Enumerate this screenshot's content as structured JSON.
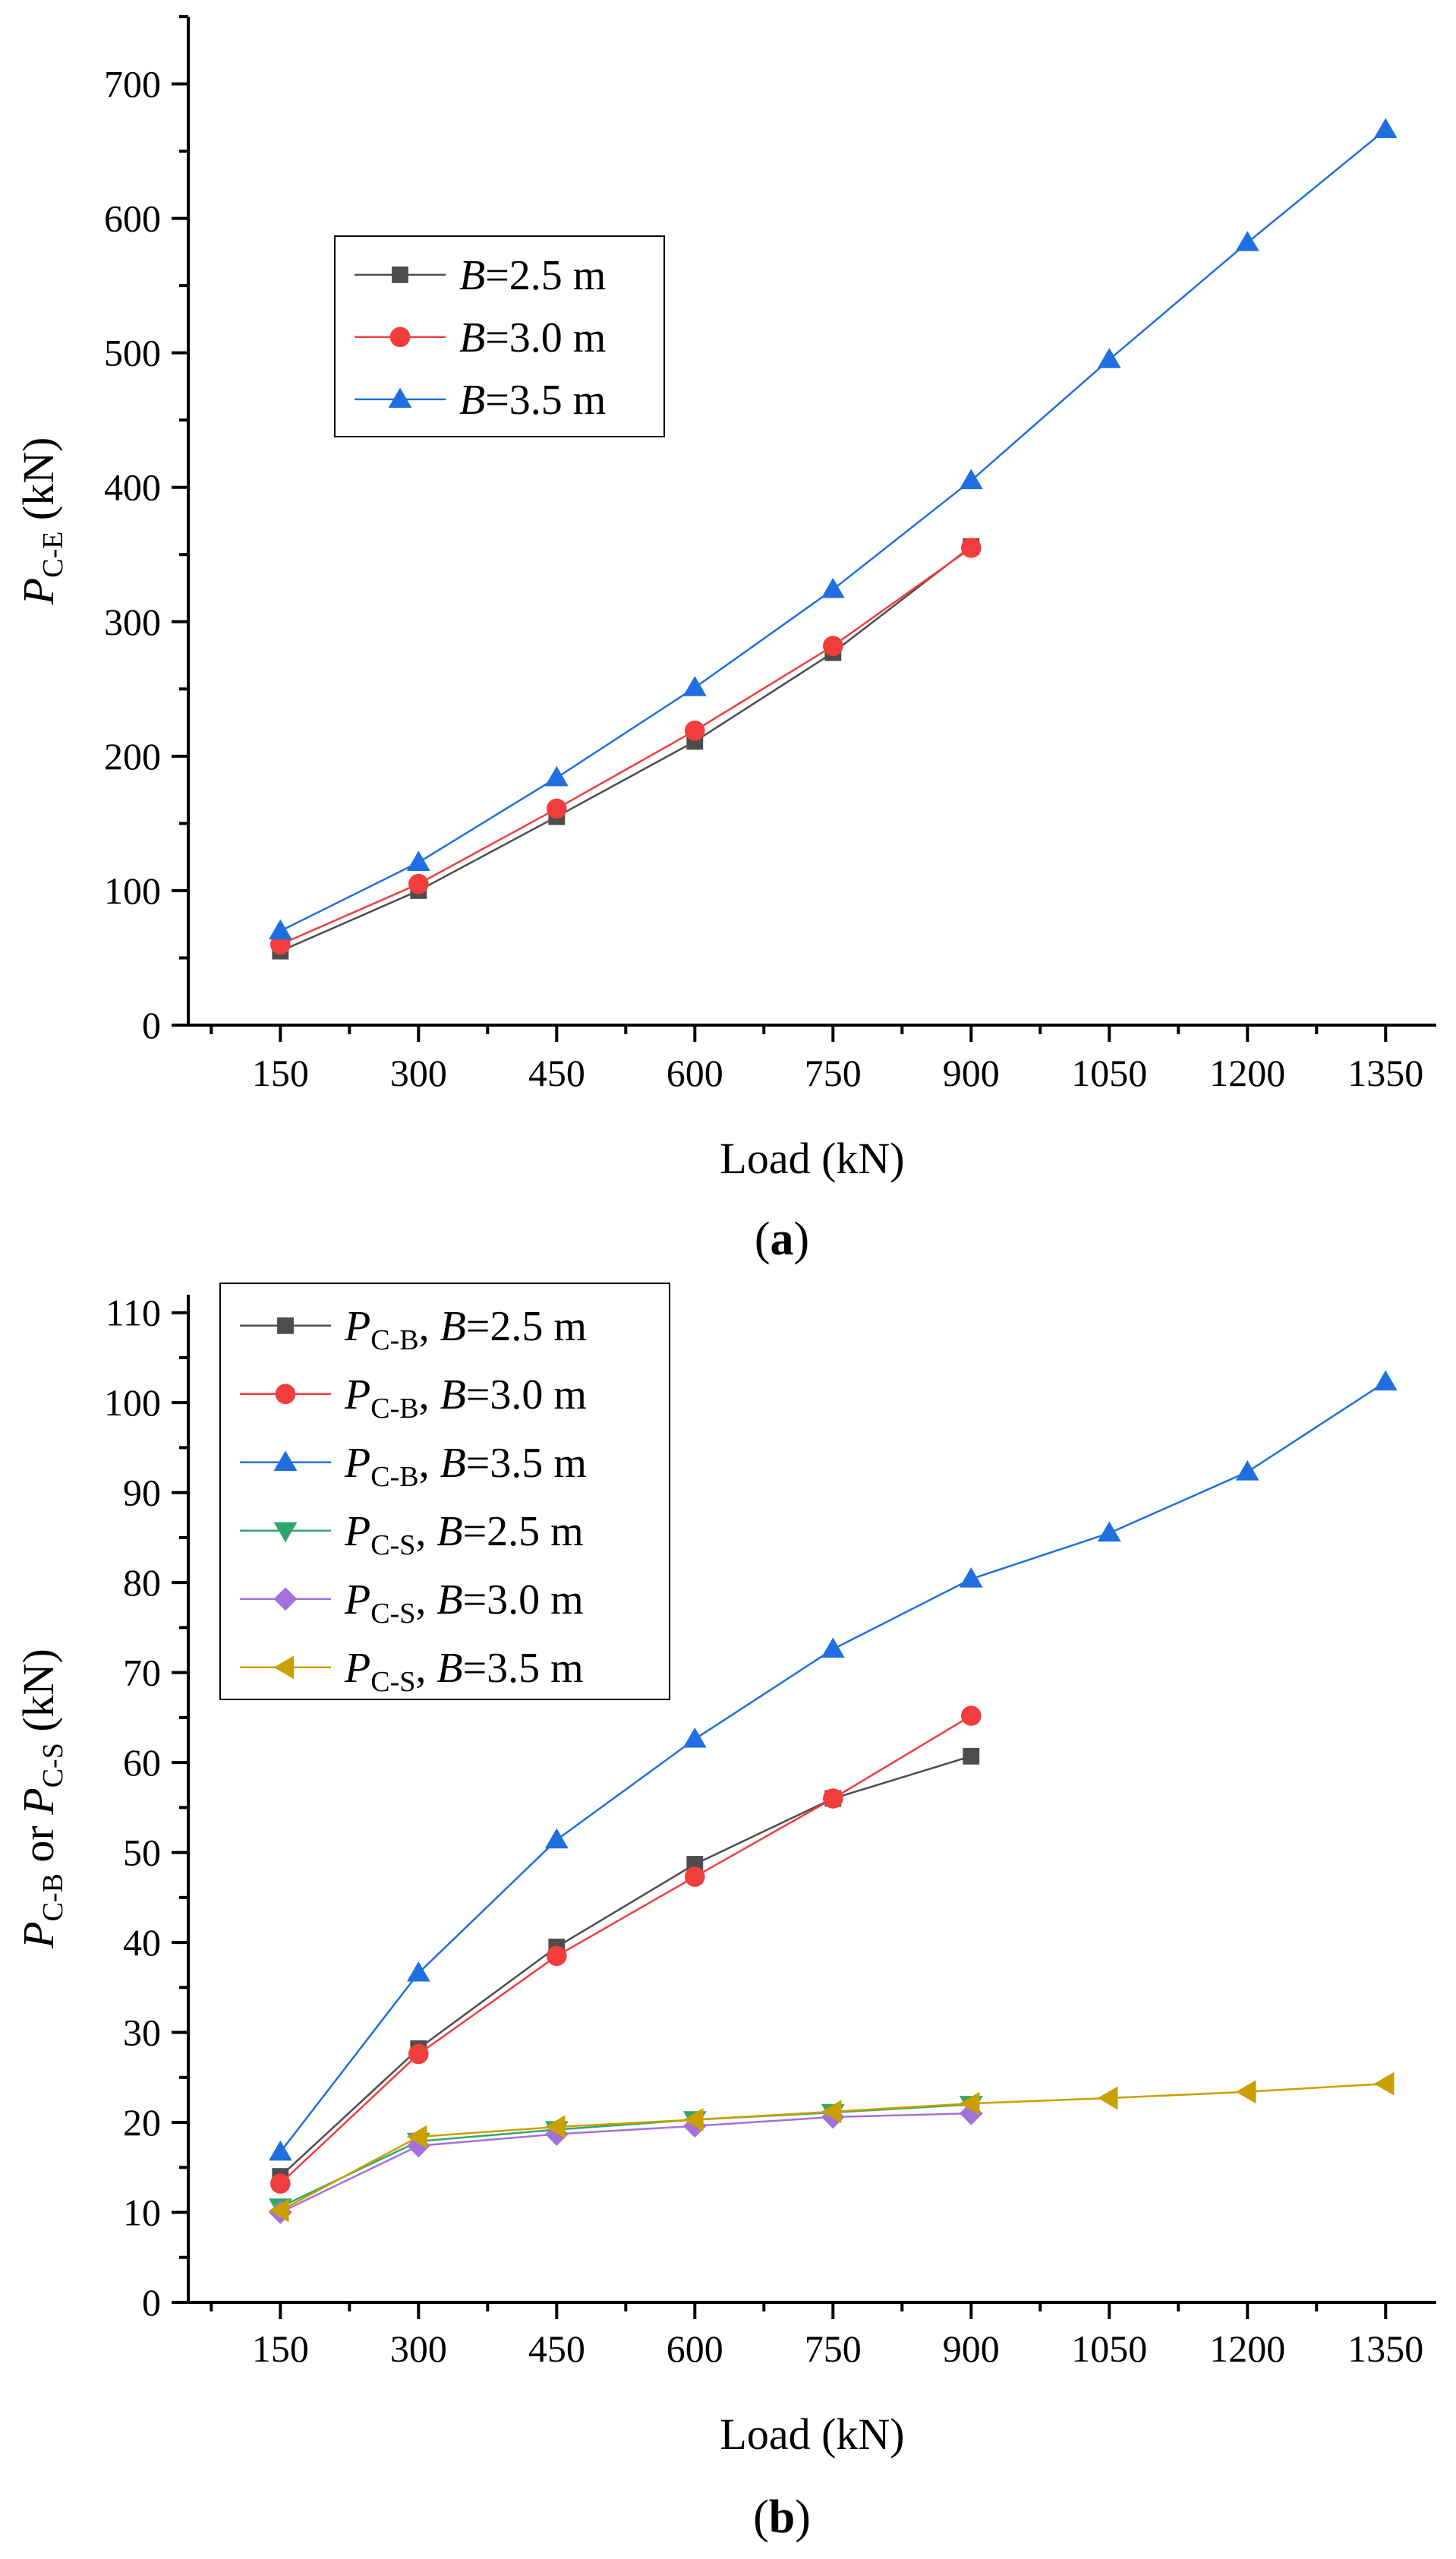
{
  "chart_data": [
    {
      "id": "a",
      "type": "line",
      "caption_open": "(",
      "caption": "a",
      "caption_close": ")",
      "xlabel": "Load (kN)",
      "ylabel": {
        "main": "P",
        "sub": "C-E",
        "unit": " (kN)"
      },
      "x_ticks": [
        150,
        300,
        450,
        600,
        750,
        900,
        1050,
        1200,
        1350
      ],
      "xlim": [
        50,
        1405
      ],
      "ylim": [
        0,
        750
      ],
      "y_ticks": [
        0,
        100,
        200,
        300,
        400,
        500,
        600,
        700
      ],
      "series": [
        {
          "name": "B=2.5 m",
          "label_var": "B",
          "label_val": "=2.5 m",
          "color": "#4d4d4d",
          "marker": "square",
          "x": [
            150,
            300,
            450,
            600,
            750,
            900
          ],
          "values": [
            55,
            100,
            155,
            211,
            277,
            356
          ]
        },
        {
          "name": "B=3.0 m",
          "label_var": "B",
          "label_val": "=3.0 m",
          "color": "#f23d3d",
          "marker": "circle",
          "x": [
            150,
            300,
            450,
            600,
            750,
            900
          ],
          "values": [
            60,
            105,
            161,
            219,
            282,
            355
          ]
        },
        {
          "name": "B=3.5 m",
          "label_var": "B",
          "label_val": "=3.5 m",
          "color": "#1f6fe0",
          "marker": "triangle-up",
          "x": [
            150,
            300,
            450,
            600,
            750,
            900,
            1050,
            1200,
            1350
          ],
          "values": [
            70,
            121,
            184,
            251,
            324,
            405,
            495,
            582,
            666
          ]
        }
      ]
    },
    {
      "id": "b",
      "type": "line",
      "caption_open": "(",
      "caption": "b",
      "caption_close": ")",
      "xlabel": "Load (kN)",
      "ylabel": {
        "main": "P",
        "sub": "C-B",
        "mid": " or ",
        "main2": "P",
        "sub2": "C-S",
        "unit": " (kN)"
      },
      "x_ticks": [
        150,
        300,
        450,
        600,
        750,
        900,
        1050,
        1200,
        1350
      ],
      "xlim": [
        50,
        1405
      ],
      "ylim": [
        0,
        112
      ],
      "y_ticks": [
        0,
        10,
        20,
        30,
        40,
        50,
        60,
        70,
        80,
        90,
        100,
        110
      ],
      "series": [
        {
          "name": "P C-B, B=2.5 m",
          "label_main": "P",
          "label_sub": "C-B",
          "label_sep": ", ",
          "label_var": "B",
          "label_val": "=2.5 m",
          "color": "#4d4d4d",
          "marker": "square",
          "x": [
            150,
            300,
            450,
            600,
            750,
            900
          ],
          "values": [
            14,
            28.2,
            39.5,
            48.7,
            56,
            60.7
          ]
        },
        {
          "name": "P C-B, B=3.0 m",
          "label_main": "P",
          "label_sub": "C-B",
          "label_sep": ", ",
          "label_var": "B",
          "label_val": "=3.0 m",
          "color": "#f23d3d",
          "marker": "circle",
          "x": [
            150,
            300,
            450,
            600,
            750,
            900
          ],
          "values": [
            13.2,
            27.6,
            38.5,
            47.3,
            56,
            65.2
          ]
        },
        {
          "name": "P C-B, B=3.5 m",
          "label_main": "P",
          "label_sub": "C-B",
          "label_sep": ", ",
          "label_var": "B",
          "label_val": "=3.5 m",
          "color": "#1f6fe0",
          "marker": "triangle-up",
          "x": [
            150,
            300,
            450,
            600,
            750,
            900,
            1050,
            1200,
            1350
          ],
          "values": [
            16.7,
            36.6,
            51.4,
            62.6,
            72.6,
            80.4,
            85.5,
            92.3,
            102.3
          ]
        },
        {
          "name": "P C-S, B=2.5 m",
          "label_main": "P",
          "label_sub": "C-S",
          "label_sep": ", ",
          "label_var": "B",
          "label_val": "=2.5 m",
          "color": "#2ea86a",
          "marker": "triangle-down",
          "x": [
            150,
            300,
            450,
            600,
            750,
            900
          ],
          "values": [
            10.6,
            17.9,
            19.2,
            20.3,
            21.1,
            22
          ]
        },
        {
          "name": "P C-S, B=3.0 m",
          "label_main": "P",
          "label_sub": "C-S",
          "label_sep": ", ",
          "label_var": "B",
          "label_val": "=3.0 m",
          "color": "#a470dc",
          "marker": "diamond",
          "x": [
            150,
            300,
            450,
            600,
            750,
            900
          ],
          "values": [
            10,
            17.4,
            18.7,
            19.6,
            20.6,
            21
          ]
        },
        {
          "name": "P C-S, B=3.5 m",
          "label_main": "P",
          "label_sub": "C-S",
          "label_sep": ", ",
          "label_var": "B",
          "label_val": "=3.5 m",
          "color": "#c9a000",
          "marker": "triangle-left",
          "x": [
            150,
            300,
            450,
            600,
            750,
            900,
            1050,
            1200,
            1350
          ],
          "values": [
            10.2,
            18.4,
            19.5,
            20.3,
            21.2,
            22.1,
            22.7,
            23.4,
            24.3
          ]
        }
      ]
    }
  ]
}
